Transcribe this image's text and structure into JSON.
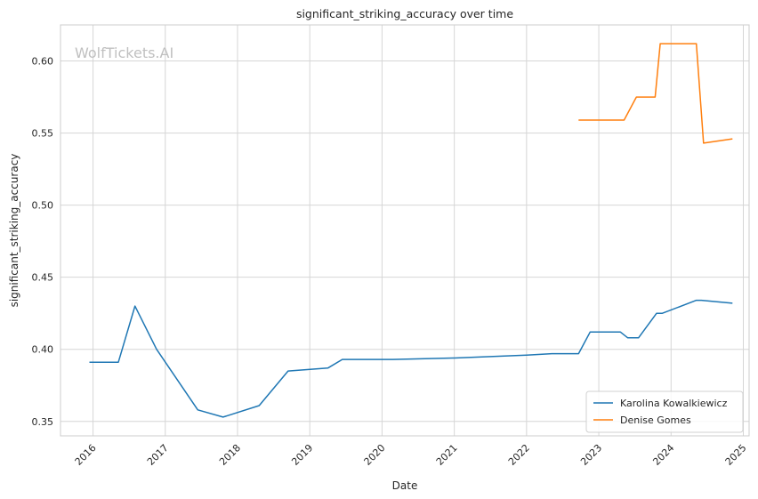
{
  "chart_data": {
    "type": "line",
    "title": "significant_striking_accuracy over time",
    "xlabel": "Date",
    "ylabel": "significant_striking_accuracy",
    "watermark": "WolfTickets.AI",
    "x_ticks": [
      "2016",
      "2017",
      "2018",
      "2019",
      "2020",
      "2021",
      "2022",
      "2023",
      "2024",
      "2025"
    ],
    "y_ticks": [
      "0.35",
      "0.40",
      "0.45",
      "0.50",
      "0.55",
      "0.60"
    ],
    "ylim": [
      0.34,
      0.625
    ],
    "xlim": [
      2015.55,
      2025.08
    ],
    "grid": true,
    "legend_position": "bottom-right",
    "series": [
      {
        "name": "Karolina Kowalkiewicz",
        "color": "#1f77b4",
        "x": [
          2015.95,
          2016.35,
          2016.58,
          2016.88,
          2017.45,
          2017.8,
          2018.3,
          2018.7,
          2019.25,
          2019.45,
          2020.15,
          2021.0,
          2022.0,
          2022.35,
          2022.72,
          2022.88,
          2023.3,
          2023.4,
          2023.55,
          2023.8,
          2023.88,
          2024.35,
          2024.42,
          2024.85
        ],
        "y": [
          0.391,
          0.391,
          0.43,
          0.4,
          0.358,
          0.353,
          0.361,
          0.385,
          0.387,
          0.393,
          0.393,
          0.394,
          0.396,
          0.397,
          0.397,
          0.412,
          0.412,
          0.408,
          0.408,
          0.425,
          0.425,
          0.434,
          0.434,
          0.432
        ]
      },
      {
        "name": "Denise Gomes",
        "color": "#ff7f0e",
        "x": [
          2022.72,
          2023.35,
          2023.52,
          2023.78,
          2023.85,
          2024.35,
          2024.45,
          2024.85
        ],
        "y": [
          0.559,
          0.559,
          0.575,
          0.575,
          0.612,
          0.612,
          0.543,
          0.546
        ]
      }
    ]
  }
}
